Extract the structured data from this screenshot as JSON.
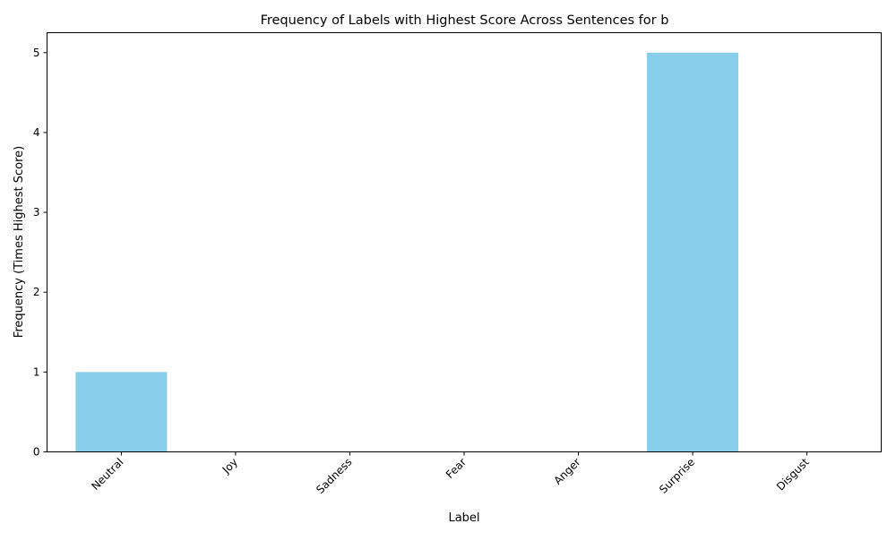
{
  "chart_data": {
    "type": "bar",
    "title": "Frequency of Labels with Highest Score Across Sentences for b",
    "xlabel": "Label",
    "ylabel": "Frequency (Times Highest Score)",
    "categories": [
      "Neutral",
      "Joy",
      "Sadness",
      "Fear",
      "Anger",
      "Surprise",
      "Disgust"
    ],
    "values": [
      1,
      0,
      0,
      0,
      0,
      5,
      0
    ],
    "ylim": [
      0,
      5.25
    ],
    "yticks": [
      0,
      1,
      2,
      3,
      4,
      5
    ],
    "bar_color": "#87ceeb",
    "grid": false,
    "legend": "none"
  }
}
